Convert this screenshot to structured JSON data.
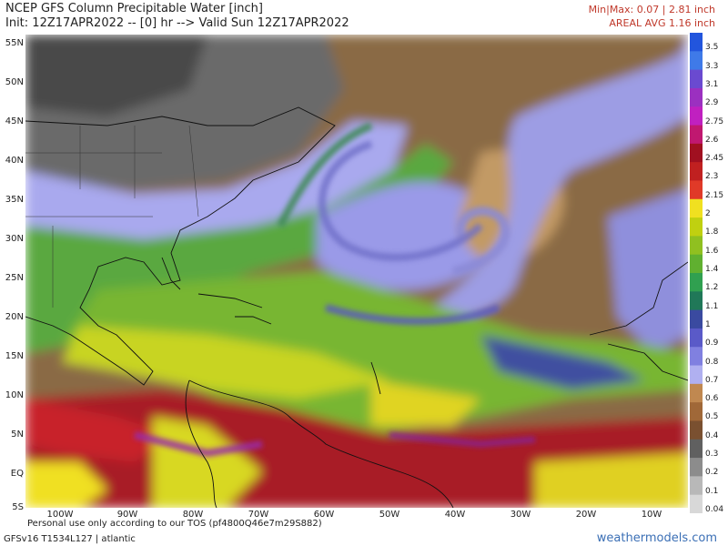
{
  "header": {
    "title": "NCEP GFS Column Precipitable Water [inch]",
    "subtitle": "Init: 12Z17APR2022 -- [0] hr --> Valid Sun 12Z17APR2022",
    "minmax": "Min|Max: 0.07 | 2.81 inch",
    "areal_avg": "AREAL AVG 1.16 inch"
  },
  "lat_labels": [
    "55N",
    "50N",
    "45N",
    "40N",
    "35N",
    "30N",
    "25N",
    "20N",
    "15N",
    "10N",
    "5N",
    "EQ",
    "5S"
  ],
  "lon_labels": [
    "100W",
    "90W",
    "80W",
    "70W",
    "60W",
    "50W",
    "40W",
    "30W",
    "20W",
    "10W"
  ],
  "colorbar": {
    "labels": [
      "3.5",
      "3.3",
      "3.1",
      "2.9",
      "2.75",
      "2.6",
      "2.45",
      "2.3",
      "2.15",
      "2",
      "1.8",
      "1.6",
      "1.4",
      "1.2",
      "1.1",
      "1",
      "0.9",
      "0.8",
      "0.7",
      "0.6",
      "0.5",
      "0.4",
      "0.3",
      "0.2",
      "0.1",
      "0.04"
    ],
    "colors": [
      "#2255dd",
      "#3f7ae8",
      "#6a4ad0",
      "#9b30c0",
      "#c020c0",
      "#c01870",
      "#a01020",
      "#c02020",
      "#e03a28",
      "#f0e020",
      "#c0d010",
      "#90c020",
      "#60b030",
      "#30a050",
      "#207858",
      "#3a4aa0",
      "#5a5ac8",
      "#8080e0",
      "#b0b0f0",
      "#c08850",
      "#a06838",
      "#7a5030",
      "#606060",
      "#8c8c8c",
      "#b8b8b8",
      "#d8d8d8"
    ]
  },
  "footer": {
    "disclaimer": "Personal use only according to our TOS (pf4800Q46e7m29S882)",
    "model": "GFSv16 T1534L127 | atlantic",
    "brand": "weathermodels.com"
  }
}
